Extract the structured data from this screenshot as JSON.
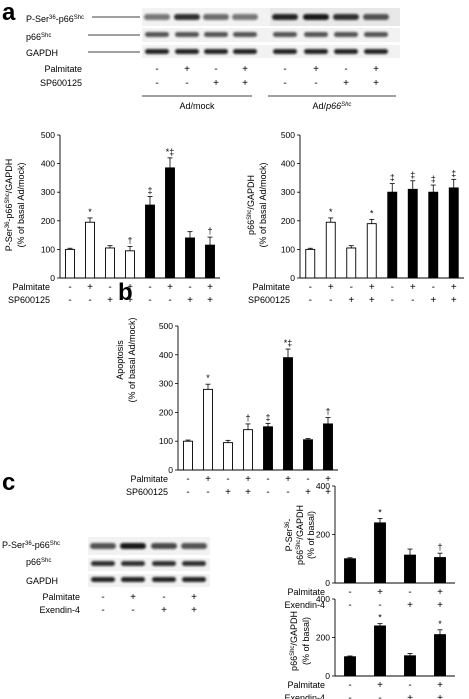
{
  "panels": {
    "a": "a",
    "b": "b",
    "c": "c"
  },
  "blot_a": {
    "rows": [
      "P-Ser36-p66Shc",
      "p66Shc",
      "GAPDH"
    ],
    "treatments": [
      "Palmitate",
      "SP600125"
    ],
    "palmitate": [
      "-",
      "+",
      "-",
      "+",
      "-",
      "+",
      "-",
      "+"
    ],
    "sp600125": [
      "-",
      "-",
      "+",
      "+",
      "-",
      "-",
      "+",
      "+"
    ],
    "groups": [
      "Ad/mock",
      "Ad/p66Shc"
    ]
  },
  "blot_c": {
    "rows": [
      "P-Ser36-p66Shc",
      "p66Shc",
      "GAPDH"
    ],
    "treatments": [
      "Palmitate",
      "Exendin-4"
    ],
    "palmitate": [
      "-",
      "+",
      "-",
      "+"
    ],
    "exendin": [
      "-",
      "-",
      "+",
      "+"
    ]
  },
  "chart_data": [
    {
      "id": "a-left",
      "type": "bar",
      "ylabel": "P-Ser36-p66Shc/GAPDH (% of basal Ad/mock)",
      "ylim": [
        0,
        500
      ],
      "yticks": [
        0,
        100,
        200,
        300,
        400,
        500
      ],
      "values": [
        100,
        195,
        105,
        95,
        255,
        385,
        140,
        115
      ],
      "errors": [
        4,
        15,
        8,
        15,
        30,
        35,
        22,
        28
      ],
      "fills": [
        "open",
        "open",
        "open",
        "open",
        "solid",
        "solid",
        "solid",
        "solid"
      ],
      "sig": [
        "",
        "*",
        "",
        "†",
        "‡",
        "*‡",
        "",
        "†"
      ],
      "rows": [
        {
          "label": "Palmitate",
          "signs": [
            "-",
            "+",
            "-",
            "+",
            "-",
            "+",
            "-",
            "+"
          ]
        },
        {
          "label": "SP600125",
          "signs": [
            "-",
            "-",
            "+",
            "+",
            "-",
            "-",
            "+",
            "+"
          ]
        }
      ]
    },
    {
      "id": "a-right",
      "type": "bar",
      "ylabel": "p66Shc/GAPDH (% of basal Ad/mock)",
      "ylim": [
        0,
        500
      ],
      "yticks": [
        0,
        100,
        200,
        300,
        400,
        500
      ],
      "values": [
        100,
        195,
        105,
        190,
        300,
        310,
        300,
        315
      ],
      "errors": [
        4,
        15,
        8,
        15,
        30,
        30,
        25,
        30
      ],
      "fills": [
        "open",
        "open",
        "open",
        "open",
        "solid",
        "solid",
        "solid",
        "solid"
      ],
      "sig": [
        "",
        "*",
        "",
        "*",
        "‡",
        "‡",
        "‡",
        "‡"
      ],
      "rows": [
        {
          "label": "Palmitate",
          "signs": [
            "-",
            "+",
            "-",
            "+",
            "-",
            "+",
            "-",
            "+"
          ]
        },
        {
          "label": "SP600125",
          "signs": [
            "-",
            "-",
            "+",
            "+",
            "-",
            "-",
            "+",
            "+"
          ]
        }
      ]
    },
    {
      "id": "b",
      "type": "bar",
      "ylabel": "Apoptosis (% of basal Ad/mock)",
      "ylim": [
        0,
        500
      ],
      "yticks": [
        0,
        100,
        200,
        300,
        400,
        500
      ],
      "values": [
        100,
        280,
        95,
        140,
        150,
        390,
        105,
        160
      ],
      "errors": [
        4,
        18,
        8,
        20,
        12,
        30,
        4,
        22
      ],
      "fills": [
        "open",
        "open",
        "open",
        "open",
        "solid",
        "solid",
        "solid",
        "solid"
      ],
      "sig": [
        "",
        "*",
        "",
        "†",
        "‡",
        "*‡",
        "",
        "†"
      ],
      "rows": [
        {
          "label": "Palmitate",
          "signs": [
            "-",
            "+",
            "-",
            "+",
            "-",
            "+",
            "-",
            "+"
          ]
        },
        {
          "label": "SP600125",
          "signs": [
            "-",
            "-",
            "+",
            "+",
            "-",
            "-",
            "+",
            "+"
          ]
        }
      ]
    },
    {
      "id": "c-top",
      "type": "bar",
      "ylabel": "P-Ser36-p66Shc/GAPDH (% of basal)",
      "ylim": [
        0,
        400
      ],
      "yticks": [
        0,
        200,
        400
      ],
      "values": [
        100,
        248,
        115,
        105
      ],
      "errors": [
        4,
        18,
        25,
        18
      ],
      "fills": [
        "solid",
        "solid",
        "solid",
        "solid"
      ],
      "sig": [
        "",
        "*",
        "",
        "†"
      ],
      "rows": [
        {
          "label": "Palmitate",
          "signs": [
            "-",
            "+",
            "-",
            "+"
          ]
        },
        {
          "label": "Exendin-4",
          "signs": [
            "-",
            "-",
            "+",
            "+"
          ]
        }
      ]
    },
    {
      "id": "c-bottom",
      "type": "bar",
      "ylabel": "p66Shc/GAPDH (% of basal)",
      "ylim": [
        0,
        400
      ],
      "yticks": [
        0,
        200,
        400
      ],
      "values": [
        100,
        260,
        105,
        215
      ],
      "errors": [
        4,
        12,
        12,
        25
      ],
      "fills": [
        "solid",
        "solid",
        "solid",
        "solid"
      ],
      "sig": [
        "",
        "*",
        "",
        "*"
      ],
      "rows": [
        {
          "label": "Palmitate",
          "signs": [
            "-",
            "+",
            "-",
            "+"
          ]
        },
        {
          "label": "Exendin-4",
          "signs": [
            "-",
            "-",
            "+",
            "+"
          ]
        }
      ]
    }
  ]
}
